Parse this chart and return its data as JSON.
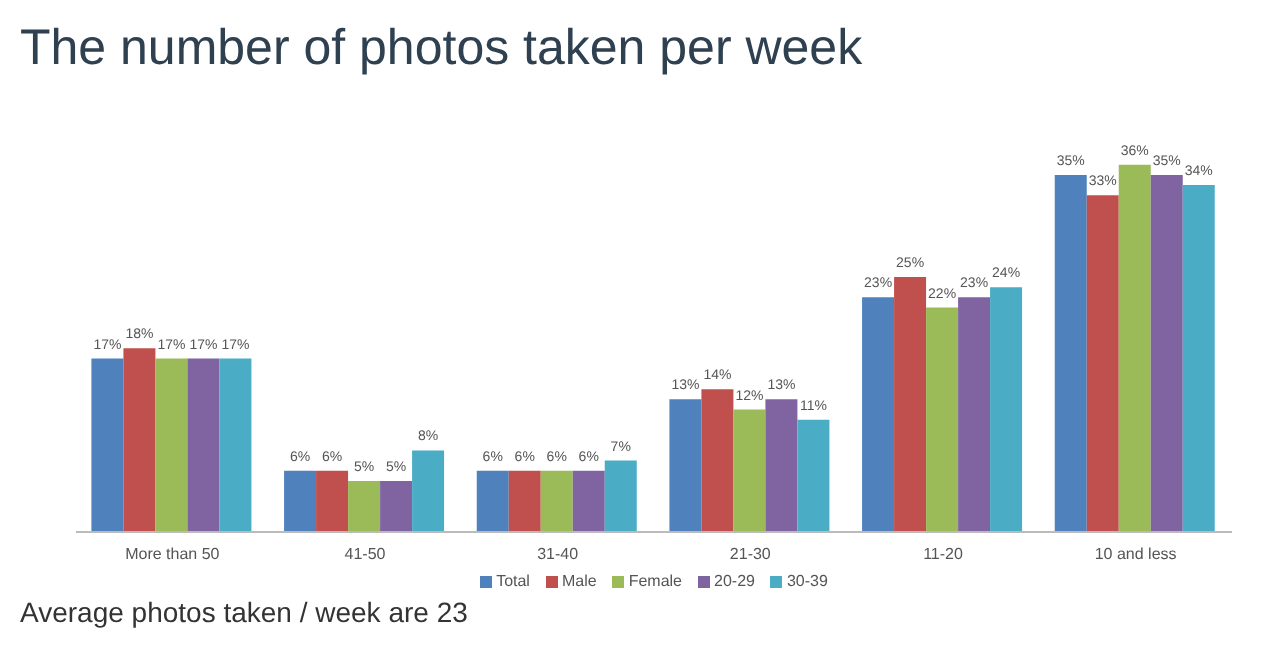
{
  "chart_data": {
    "type": "bar",
    "title": "The number of photos taken per week",
    "categories": [
      "More than 50",
      "41-50",
      "31-40",
      "21-30",
      "11-20",
      "10 and less"
    ],
    "series": [
      {
        "name": "Total",
        "color": "#4f81bd",
        "values": [
          17,
          6,
          6,
          13,
          23,
          35
        ],
        "value_labels": [
          "17%",
          "6%",
          "6%",
          "13%",
          "23%",
          "35%"
        ]
      },
      {
        "name": "Male",
        "color": "#c0504d",
        "values": [
          18,
          6,
          6,
          14,
          25,
          33
        ],
        "value_labels": [
          "18%",
          "6%",
          "6%",
          "14%",
          "25%",
          "33%"
        ]
      },
      {
        "name": "Female",
        "color": "#9bbb59",
        "values": [
          17,
          5,
          6,
          12,
          22,
          36
        ],
        "value_labels": [
          "17%",
          "5%",
          "6%",
          "12%",
          "22%",
          "36%"
        ]
      },
      {
        "name": "20-29",
        "color": "#8064a2",
        "values": [
          17,
          5,
          6,
          13,
          23,
          35
        ],
        "value_labels": [
          "17%",
          "5%",
          "6%",
          "13%",
          "23%",
          "35%"
        ]
      },
      {
        "name": "30-39",
        "color": "#4bacc6",
        "values": [
          17,
          8,
          7,
          11,
          24,
          34
        ],
        "value_labels": [
          "17%",
          "8%",
          "7%",
          "11%",
          "24%",
          "34%"
        ]
      }
    ],
    "legend": "bottom",
    "annotations": [
      "Average photos taken / week are 23"
    ]
  }
}
